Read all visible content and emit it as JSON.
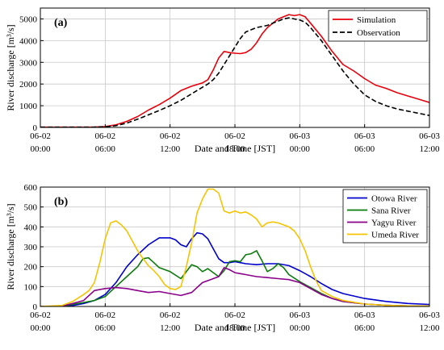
{
  "chart_data": [
    {
      "panel_label": "(a)",
      "type": "line",
      "xlabel": "Date and Time [JST]",
      "ylabel": "River discharge [m³/s]",
      "xlim": [
        0,
        36
      ],
      "ylim": [
        0,
        5500
      ],
      "x_ticks": [
        {
          "at": 0,
          "l1": "06-02",
          "l2": "00:00"
        },
        {
          "at": 6,
          "l1": "06-02",
          "l2": "06:00"
        },
        {
          "at": 12,
          "l1": "06-02",
          "l2": "12:00"
        },
        {
          "at": 18,
          "l1": "06-02",
          "l2": "18:00"
        },
        {
          "at": 24,
          "l1": "06-03",
          "l2": "00:00"
        },
        {
          "at": 30,
          "l1": "06-03",
          "l2": "06:00"
        },
        {
          "at": 36,
          "l1": "06-03",
          "l2": "12:00"
        }
      ],
      "y_ticks": [
        0,
        1000,
        2000,
        3000,
        4000,
        5000
      ],
      "grid": true,
      "legend_position": "top-right",
      "series": [
        {
          "name": "Simulation",
          "color": "#e8000b",
          "dash": "solid",
          "x": [
            0,
            3,
            5,
            6,
            7,
            8,
            9,
            10,
            11,
            12,
            13,
            14,
            15,
            15.5,
            16,
            16.5,
            17,
            17.5,
            18,
            18.5,
            19,
            19.5,
            20,
            20.5,
            21,
            21.5,
            22,
            22.5,
            23,
            23.5,
            24,
            24.5,
            25,
            26,
            27,
            28,
            29,
            30,
            31,
            32,
            33,
            34,
            35,
            36
          ],
          "y": [
            10,
            10,
            15,
            40,
            120,
            280,
            500,
            800,
            1050,
            1350,
            1700,
            1900,
            2050,
            2200,
            2650,
            3200,
            3500,
            3450,
            3420,
            3400,
            3450,
            3600,
            3900,
            4300,
            4600,
            4800,
            5000,
            5100,
            5200,
            5150,
            5200,
            5100,
            4800,
            4200,
            3500,
            2900,
            2600,
            2250,
            1950,
            1800,
            1600,
            1450,
            1300,
            1150
          ]
        },
        {
          "name": "Observation",
          "color": "#000000",
          "dash": "dashed",
          "x": [
            0,
            3,
            5,
            6,
            7,
            8,
            9,
            10,
            11,
            12,
            13,
            14,
            15,
            15.5,
            16,
            16.5,
            17,
            17.5,
            18,
            18.5,
            19,
            19.5,
            20,
            20.5,
            21,
            21.5,
            22,
            22.5,
            23,
            23.5,
            24,
            24.5,
            25,
            26,
            27,
            28,
            29,
            30,
            31,
            32,
            33,
            34,
            35,
            36
          ],
          "y": [
            10,
            10,
            15,
            30,
            80,
            200,
            380,
            580,
            780,
            1000,
            1250,
            1550,
            1850,
            2000,
            2200,
            2500,
            2900,
            3300,
            3700,
            4100,
            4400,
            4500,
            4600,
            4650,
            4700,
            4800,
            4900,
            5000,
            5050,
            5000,
            4950,
            4850,
            4600,
            4000,
            3300,
            2600,
            2000,
            1500,
            1200,
            1000,
            850,
            750,
            650,
            550
          ]
        }
      ]
    },
    {
      "panel_label": "(b)",
      "type": "line",
      "xlabel": "Date and Time [JST]",
      "ylabel": "River discharge [m³/s]",
      "xlim": [
        0,
        36
      ],
      "ylim": [
        0,
        600
      ],
      "x_ticks": [
        {
          "at": 0,
          "l1": "06-02",
          "l2": "00:00"
        },
        {
          "at": 6,
          "l1": "06-02",
          "l2": "06:00"
        },
        {
          "at": 12,
          "l1": "06-02",
          "l2": "12:00"
        },
        {
          "at": 18,
          "l1": "06-02",
          "l2": "18:00"
        },
        {
          "at": 24,
          "l1": "06-03",
          "l2": "00:00"
        },
        {
          "at": 30,
          "l1": "06-03",
          "l2": "06:00"
        },
        {
          "at": 36,
          "l1": "06-03",
          "l2": "12:00"
        }
      ],
      "y_ticks": [
        0,
        100,
        200,
        300,
        400,
        500,
        600
      ],
      "grid": true,
      "legend_position": "top-right",
      "series": [
        {
          "name": "Otowa River",
          "color": "#0000cd",
          "dash": "solid",
          "x": [
            0,
            2,
            3,
            4,
            5,
            6,
            7,
            8,
            9,
            10,
            11,
            12,
            12.5,
            13,
            13.5,
            14,
            14.5,
            15,
            15.5,
            16,
            16.5,
            17,
            17.5,
            18,
            18.5,
            19,
            20,
            21,
            22,
            23,
            24,
            25,
            26,
            27,
            28,
            30,
            32,
            34,
            36
          ],
          "y": [
            0,
            2,
            5,
            15,
            30,
            60,
            120,
            200,
            260,
            310,
            345,
            345,
            335,
            310,
            300,
            340,
            370,
            365,
            340,
            290,
            240,
            220,
            220,
            225,
            220,
            215,
            210,
            215,
            215,
            205,
            180,
            150,
            115,
            85,
            65,
            40,
            25,
            15,
            10
          ]
        },
        {
          "name": "Sana River",
          "color": "#0a7a0a",
          "dash": "solid",
          "x": [
            0,
            2,
            3,
            4,
            5,
            6,
            7,
            8,
            9,
            9.5,
            10,
            10.5,
            11,
            12,
            13,
            14,
            14.5,
            15,
            15.5,
            16,
            16.5,
            17,
            17.5,
            18,
            18.5,
            19,
            19.5,
            20,
            20.5,
            21,
            21.5,
            22,
            22.5,
            23,
            24,
            25,
            26,
            27,
            28,
            30,
            32,
            34,
            36
          ],
          "y": [
            0,
            2,
            10,
            20,
            30,
            50,
            100,
            150,
            200,
            240,
            245,
            220,
            195,
            175,
            140,
            210,
            200,
            175,
            190,
            170,
            150,
            180,
            225,
            230,
            225,
            260,
            265,
            280,
            230,
            175,
            190,
            215,
            195,
            160,
            125,
            95,
            65,
            40,
            25,
            12,
            6,
            3,
            2
          ]
        },
        {
          "name": "Yagyu River",
          "color": "#8b008b",
          "dash": "solid",
          "x": [
            0,
            2,
            3,
            4,
            5,
            6,
            7,
            8,
            9,
            10,
            11,
            12,
            13,
            14,
            15,
            16,
            16.5,
            17,
            17.5,
            18,
            18.5,
            19,
            20,
            21,
            22,
            23,
            24,
            25,
            26,
            27,
            28,
            30,
            32,
            34,
            36
          ],
          "y": [
            0,
            2,
            15,
            30,
            80,
            90,
            95,
            90,
            80,
            70,
            75,
            65,
            55,
            70,
            120,
            140,
            150,
            195,
            185,
            170,
            165,
            160,
            150,
            145,
            140,
            135,
            120,
            90,
            60,
            40,
            25,
            12,
            6,
            3,
            2
          ]
        },
        {
          "name": "Umeda River",
          "color": "#f5c400",
          "dash": "solid",
          "x": [
            0,
            2,
            3,
            4,
            4.5,
            5,
            5.5,
            6,
            6.5,
            7,
            7.5,
            8,
            8.5,
            9,
            9.5,
            10,
            10.5,
            11,
            11.5,
            12,
            12.5,
            13,
            13.5,
            14,
            14.5,
            15,
            15.5,
            16,
            16.5,
            17,
            17.5,
            18,
            18.5,
            19,
            19.5,
            20,
            20.5,
            21,
            21.5,
            22,
            22.5,
            23,
            23.5,
            24,
            24.5,
            25,
            25.5,
            26,
            27,
            28,
            30,
            32,
            34,
            36
          ],
          "y": [
            0,
            5,
            25,
            60,
            80,
            120,
            220,
            340,
            420,
            430,
            410,
            380,
            330,
            280,
            240,
            205,
            180,
            150,
            110,
            90,
            85,
            100,
            200,
            320,
            470,
            540,
            590,
            590,
            570,
            480,
            470,
            480,
            470,
            475,
            460,
            440,
            400,
            420,
            425,
            420,
            410,
            400,
            380,
            340,
            280,
            200,
            130,
            80,
            50,
            30,
            12,
            6,
            3,
            2
          ]
        }
      ]
    }
  ]
}
